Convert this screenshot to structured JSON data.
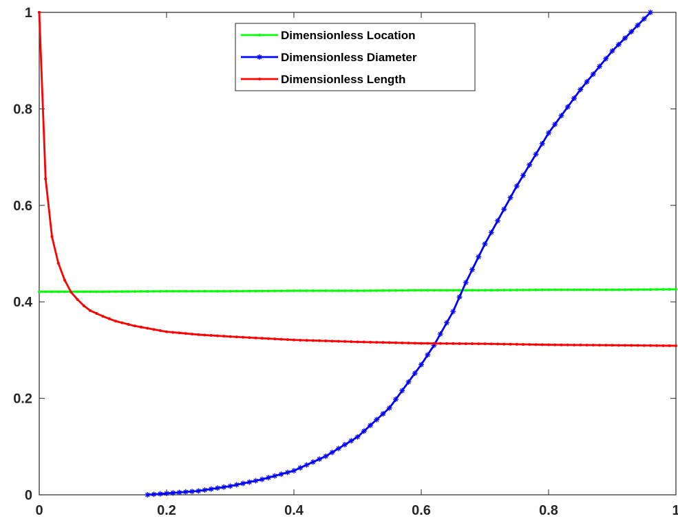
{
  "chart_data": {
    "type": "line",
    "title": "",
    "xlabel": "",
    "ylabel": "",
    "xlim": [
      0,
      1
    ],
    "ylim": [
      0,
      1
    ],
    "grid": true,
    "legend_position": "top-center",
    "x_ticks": [
      "0",
      "0.2",
      "0.4",
      "0.6",
      "0.8",
      "1"
    ],
    "y_ticks": [
      "0",
      "0.2",
      "0.4",
      "0.6",
      "0.8",
      "1"
    ],
    "series": [
      {
        "name": "Dimensionless Location",
        "color": "#00ff00",
        "marker": "dot",
        "x": [
          0,
          0.1,
          0.2,
          0.3,
          0.4,
          0.5,
          0.6,
          0.7,
          0.8,
          0.9,
          1.0
        ],
        "y": [
          0.421,
          0.421,
          0.422,
          0.422,
          0.423,
          0.423,
          0.424,
          0.424,
          0.425,
          0.425,
          0.426
        ]
      },
      {
        "name": "Dimensionless Diameter",
        "color": "#0000ff",
        "marker": "star",
        "x": [
          0.17,
          0.2,
          0.25,
          0.3,
          0.35,
          0.4,
          0.45,
          0.5,
          0.55,
          0.6,
          0.62,
          0.65,
          0.67,
          0.7,
          0.75,
          0.8,
          0.85,
          0.9,
          0.93,
          0.96
        ],
        "y": [
          0.0,
          0.003,
          0.008,
          0.018,
          0.032,
          0.05,
          0.08,
          0.12,
          0.18,
          0.27,
          0.31,
          0.38,
          0.44,
          0.52,
          0.64,
          0.75,
          0.84,
          0.92,
          0.96,
          1.0
        ]
      },
      {
        "name": "Dimensionless Length",
        "color": "#ff0000",
        "marker": "dot",
        "x": [
          0.0,
          0.01,
          0.02,
          0.03,
          0.04,
          0.05,
          0.06,
          0.07,
          0.08,
          0.1,
          0.12,
          0.15,
          0.2,
          0.25,
          0.3,
          0.4,
          0.5,
          0.6,
          0.7,
          0.8,
          0.9,
          1.0
        ],
        "y": [
          1.0,
          0.655,
          0.535,
          0.48,
          0.445,
          0.42,
          0.405,
          0.392,
          0.382,
          0.37,
          0.36,
          0.35,
          0.338,
          0.332,
          0.328,
          0.321,
          0.317,
          0.314,
          0.313,
          0.311,
          0.31,
          0.309
        ]
      }
    ]
  }
}
